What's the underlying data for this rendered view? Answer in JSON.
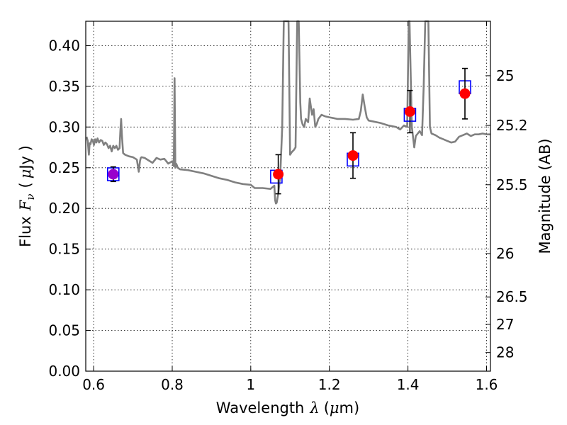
{
  "chart_data": {
    "type": "scatter",
    "xlabel": {
      "prefix": "Wavelength",
      "symbol": "λ",
      "unit_open": "(",
      "unit_mu": "μ",
      "unit_rest": "m)"
    },
    "ylabel": {
      "prefix": "Flux",
      "symbol": "F",
      "subscript": "ν",
      "unit_open": "(",
      "unit_mu": "μ",
      "unit_rest": "Jy )"
    },
    "y2label": "Magnitude (AB)",
    "xlim": [
      0.58,
      1.61
    ],
    "ylim": [
      0.0,
      0.43
    ],
    "grid": true,
    "x_ticks": [
      {
        "value": 0.6,
        "label": "0.6"
      },
      {
        "value": 0.8,
        "label": "0.8"
      },
      {
        "value": 1.0,
        "label": "1"
      },
      {
        "value": 1.2,
        "label": "1.2"
      },
      {
        "value": 1.4,
        "label": "1.4"
      },
      {
        "value": 1.6,
        "label": "1.6"
      }
    ],
    "y_ticks": [
      {
        "value": 0.0,
        "label": "0.00"
      },
      {
        "value": 0.05,
        "label": "0.05"
      },
      {
        "value": 0.1,
        "label": "0.10"
      },
      {
        "value": 0.15,
        "label": "0.15"
      },
      {
        "value": 0.2,
        "label": "0.20"
      },
      {
        "value": 0.25,
        "label": "0.25"
      },
      {
        "value": 0.3,
        "label": "0.30"
      },
      {
        "value": 0.35,
        "label": "0.35"
      },
      {
        "value": 0.4,
        "label": "0.40"
      }
    ],
    "y2_ticks": [
      {
        "label": "25",
        "flux": 0.3631
      },
      {
        "label": "25.2",
        "flux": 0.302
      },
      {
        "label": "25.5",
        "flux": 0.2291
      },
      {
        "label": "26",
        "flux": 0.1445
      },
      {
        "label": "26.5",
        "flux": 0.0912
      },
      {
        "label": "27",
        "flux": 0.0575
      },
      {
        "label": "28",
        "flux": 0.0229
      }
    ],
    "colors": {
      "model": "#808080",
      "observed": "#ff0000",
      "model_band": "#0000ff",
      "errorbar": "#000000",
      "first_point": "#9900cc"
    },
    "model_spectrum": {
      "x": [
        0.582,
        0.585,
        0.588,
        0.59,
        0.592,
        0.595,
        0.598,
        0.601,
        0.604,
        0.607,
        0.61,
        0.614,
        0.618,
        0.622,
        0.626,
        0.63,
        0.634,
        0.638,
        0.642,
        0.646,
        0.65,
        0.654,
        0.658,
        0.662,
        0.666,
        0.668,
        0.67,
        0.672,
        0.675,
        0.68,
        0.69,
        0.7,
        0.71,
        0.715,
        0.718,
        0.72,
        0.722,
        0.73,
        0.74,
        0.75,
        0.76,
        0.77,
        0.78,
        0.79,
        0.8,
        0.804,
        0.806,
        0.808,
        0.81,
        0.812,
        0.814,
        0.82,
        0.84,
        0.86,
        0.88,
        0.9,
        0.92,
        0.94,
        0.96,
        0.98,
        1.0,
        1.01,
        1.03,
        1.05,
        1.06,
        1.062,
        1.064,
        1.066,
        1.07,
        1.075,
        1.08,
        1.084,
        1.086,
        1.09,
        1.096,
        1.1,
        1.104,
        1.11,
        1.114,
        1.118,
        1.122,
        1.126,
        1.128,
        1.132,
        1.136,
        1.14,
        1.146,
        1.15,
        1.156,
        1.16,
        1.164,
        1.168,
        1.172,
        1.18,
        1.19,
        1.2,
        1.21,
        1.22,
        1.24,
        1.26,
        1.275,
        1.28,
        1.285,
        1.29,
        1.295,
        1.3,
        1.31,
        1.33,
        1.35,
        1.37,
        1.38,
        1.39,
        1.398,
        1.402,
        1.404,
        1.41,
        1.416,
        1.42,
        1.43,
        1.436,
        1.44,
        1.444,
        1.448,
        1.452,
        1.456,
        1.46,
        1.47,
        1.48,
        1.49,
        1.5,
        1.51,
        1.52,
        1.53,
        1.54,
        1.55,
        1.56,
        1.57,
        1.58,
        1.59,
        1.6,
        1.61
      ],
      "y": [
        0.288,
        0.283,
        0.266,
        0.28,
        0.279,
        0.285,
        0.283,
        0.278,
        0.285,
        0.281,
        0.286,
        0.281,
        0.284,
        0.283,
        0.278,
        0.281,
        0.279,
        0.274,
        0.277,
        0.27,
        0.277,
        0.274,
        0.277,
        0.272,
        0.274,
        0.295,
        0.31,
        0.29,
        0.268,
        0.266,
        0.264,
        0.263,
        0.26,
        0.245,
        0.258,
        0.262,
        0.263,
        0.262,
        0.259,
        0.256,
        0.262,
        0.26,
        0.261,
        0.255,
        0.258,
        0.252,
        0.36,
        0.25,
        0.255,
        0.253,
        0.25,
        0.248,
        0.247,
        0.245,
        0.243,
        0.24,
        0.237,
        0.235,
        0.232,
        0.23,
        0.229,
        0.225,
        0.225,
        0.224,
        0.228,
        0.21,
        0.206,
        0.207,
        0.218,
        0.24,
        0.3,
        0.43,
        0.43,
        0.43,
        0.43,
        0.266,
        0.269,
        0.272,
        0.275,
        0.43,
        0.43,
        0.33,
        0.31,
        0.303,
        0.3,
        0.31,
        0.306,
        0.335,
        0.315,
        0.322,
        0.3,
        0.304,
        0.31,
        0.315,
        0.313,
        0.312,
        0.311,
        0.31,
        0.31,
        0.309,
        0.31,
        0.32,
        0.34,
        0.325,
        0.312,
        0.308,
        0.307,
        0.305,
        0.302,
        0.3,
        0.297,
        0.302,
        0.3,
        0.43,
        0.43,
        0.3,
        0.275,
        0.289,
        0.295,
        0.29,
        0.35,
        0.43,
        0.43,
        0.43,
        0.3,
        0.292,
        0.29,
        0.287,
        0.285,
        0.283,
        0.281,
        0.282,
        0.288,
        0.29,
        0.292,
        0.289,
        0.291,
        0.291,
        0.292,
        0.291,
        0.291
      ]
    },
    "model_band_points": [
      {
        "x": 0.65,
        "y": 0.242
      },
      {
        "x": 1.065,
        "y": 0.239
      },
      {
        "x": 1.26,
        "y": 0.26
      },
      {
        "x": 1.405,
        "y": 0.315
      },
      {
        "x": 1.545,
        "y": 0.349
      }
    ],
    "observed_points": [
      {
        "x": 0.65,
        "y": 0.242,
        "err": 0.009
      },
      {
        "x": 1.07,
        "y": 0.242,
        "err": 0.024
      },
      {
        "x": 1.26,
        "y": 0.265,
        "err": 0.028
      },
      {
        "x": 1.405,
        "y": 0.319,
        "err": 0.026
      },
      {
        "x": 1.545,
        "y": 0.341,
        "err": 0.031
      }
    ]
  }
}
